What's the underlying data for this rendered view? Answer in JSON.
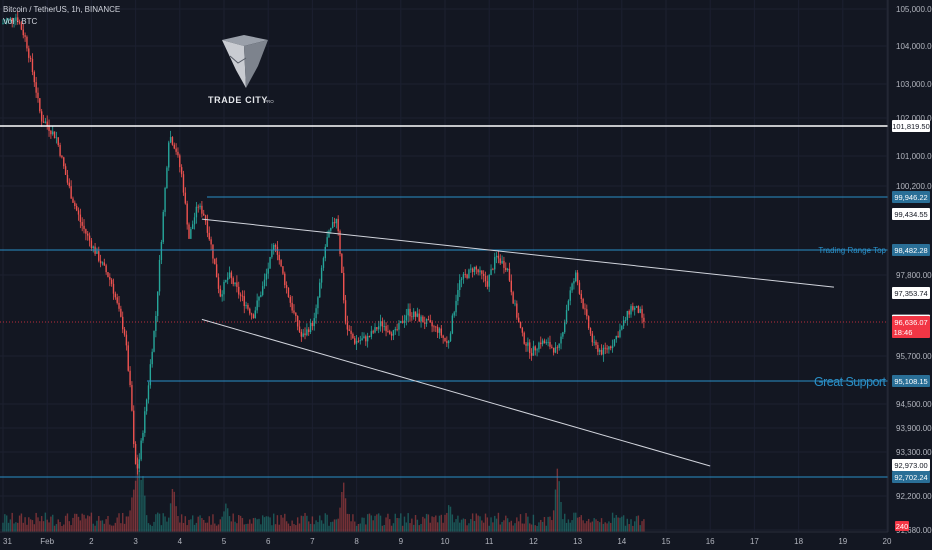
{
  "header": {
    "symbol_line": "Bitcoin / TetherUS, 1h, BINANCE",
    "vol_line": "Vol · BTC"
  },
  "logo": {
    "brand": "TRADE CITY",
    "suffix": "PRO"
  },
  "price_axis": {
    "ticks": [
      "105,000.00",
      "104,000.00",
      "103,000.00",
      "102,000.00",
      "101,000.00",
      "100,200.00",
      "97,800.00",
      "95,700.00",
      "94,500.00",
      "93,900.00",
      "93,300.00",
      "92,200.00",
      "91,680.00"
    ]
  },
  "time_axis": {
    "labels": [
      "31",
      "Feb",
      "2",
      "3",
      "4",
      "5",
      "6",
      "7",
      "8",
      "9",
      "10",
      "11",
      "12",
      "13",
      "14",
      "15",
      "16",
      "17",
      "18",
      "19",
      "20"
    ]
  },
  "levels": [
    {
      "price": 101819.5,
      "label": "101,819.50",
      "color": "#ffffff",
      "style": "white"
    },
    {
      "price": 99946.22,
      "label": "99,946.22",
      "color": "#2a8fc7",
      "style": "blue"
    },
    {
      "price": 98482.28,
      "label": "98,482.28",
      "color": "#2a8fc7",
      "style": "blue",
      "text": "Trading Range Top"
    },
    {
      "price": 95108.15,
      "label": "95,108.15",
      "color": "#2a8fc7",
      "style": "blue",
      "text": "Great Support"
    },
    {
      "price": 92702.24,
      "label": "92,702.24",
      "color": "#2a8fc7",
      "style": "blue"
    }
  ],
  "price_labels": [
    {
      "price": 99434.55,
      "label": "99,434.55",
      "kind": "plain"
    },
    {
      "price": 97353.74,
      "label": "97,353.74",
      "kind": "plain"
    },
    {
      "price": 96669.86,
      "label": "96,669.86",
      "kind": "plain"
    },
    {
      "price": 92973.0,
      "label": "92,973.00",
      "kind": "plain"
    }
  ],
  "current_price": {
    "price": 96636.07,
    "label": "96,636.07",
    "countdown": "18:46",
    "color": "#f23645"
  },
  "volume_badge": {
    "label": "240",
    "color": "#f23645"
  },
  "trendlines": [
    {
      "name": "upper-trendline",
      "from": {
        "day": 4.5,
        "price": 99300
      },
      "to": {
        "day": 18.8,
        "price": 97500
      }
    },
    {
      "name": "lower-trendline",
      "from": {
        "day": 4.5,
        "price": 96700
      },
      "to": {
        "day": 16.0,
        "price": 92950
      }
    }
  ],
  "chart_data": {
    "type": "candlestick",
    "x_axis": "date (days, Jan 31 – Feb 20)",
    "ylim": [
      91500,
      105200
    ],
    "colors": {
      "up": "#26a69a",
      "down": "#ef5350"
    },
    "anchors": [
      [
        0.0,
        104600
      ],
      [
        0.35,
        104800
      ],
      [
        0.55,
        104200
      ],
      [
        0.75,
        103100
      ],
      [
        0.9,
        102000
      ],
      [
        1.0,
        101900
      ],
      [
        1.25,
        101500
      ],
      [
        1.5,
        100300
      ],
      [
        1.8,
        99200
      ],
      [
        2.1,
        98500
      ],
      [
        2.5,
        97600
      ],
      [
        2.8,
        96300
      ],
      [
        2.95,
        94500
      ],
      [
        3.02,
        93000
      ],
      [
        3.1,
        92900
      ],
      [
        3.3,
        94700
      ],
      [
        3.5,
        96800
      ],
      [
        3.65,
        99200
      ],
      [
        3.8,
        101600
      ],
      [
        3.95,
        101200
      ],
      [
        4.1,
        100400
      ],
      [
        4.25,
        98800
      ],
      [
        4.45,
        99700
      ],
      [
        4.6,
        99400
      ],
      [
        4.75,
        98600
      ],
      [
        4.95,
        97300
      ],
      [
        5.15,
        97800
      ],
      [
        5.4,
        97300
      ],
      [
        5.7,
        96800
      ],
      [
        5.95,
        97600
      ],
      [
        6.2,
        98700
      ],
      [
        6.35,
        97900
      ],
      [
        6.55,
        97100
      ],
      [
        6.8,
        96200
      ],
      [
        7.1,
        96700
      ],
      [
        7.35,
        98700
      ],
      [
        7.6,
        99400
      ],
      [
        7.8,
        96500
      ],
      [
        8.0,
        96100
      ],
      [
        8.3,
        96200
      ],
      [
        8.6,
        96600
      ],
      [
        8.9,
        96300
      ],
      [
        9.2,
        96900
      ],
      [
        9.5,
        96700
      ],
      [
        9.9,
        96400
      ],
      [
        10.1,
        96000
      ],
      [
        10.35,
        97600
      ],
      [
        10.7,
        98000
      ],
      [
        11.0,
        97600
      ],
      [
        11.2,
        98300
      ],
      [
        11.45,
        98000
      ],
      [
        11.6,
        97100
      ],
      [
        11.8,
        96200
      ],
      [
        12.0,
        95800
      ],
      [
        12.2,
        96100
      ],
      [
        12.4,
        96000
      ],
      [
        12.6,
        95800
      ],
      [
        12.7,
        96400
      ],
      [
        12.85,
        97300
      ],
      [
        13.0,
        97800
      ],
      [
        13.2,
        96900
      ],
      [
        13.4,
        96000
      ],
      [
        13.6,
        95800
      ],
      [
        13.8,
        96000
      ],
      [
        14.0,
        96400
      ],
      [
        14.25,
        97000
      ],
      [
        14.45,
        96900
      ],
      [
        14.5,
        96640
      ]
    ],
    "volume_spikes": [
      [
        3.05,
        1.0
      ],
      [
        3.15,
        0.75
      ],
      [
        3.85,
        0.55
      ],
      [
        7.7,
        0.6
      ],
      [
        12.55,
        0.8
      ],
      [
        2.95,
        0.5
      ],
      [
        10.1,
        0.3
      ],
      [
        5.05,
        0.3
      ]
    ],
    "levels": [
      101819.5,
      99946.22,
      98482.28,
      95108.15,
      92702.24
    ]
  }
}
